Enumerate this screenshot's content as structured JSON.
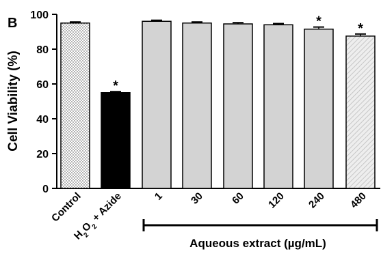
{
  "chart_data": {
    "type": "bar",
    "panel_label": "B",
    "ylabel": "Cell Viability (%)",
    "ylim": [
      0,
      100
    ],
    "yticks": [
      0,
      20,
      40,
      60,
      80,
      100
    ],
    "grid": false,
    "legend": "none",
    "categories": [
      "Control",
      "H2O2 + Azide",
      "1",
      "30",
      "60",
      "120",
      "240",
      "480"
    ],
    "values": [
      95,
      55,
      96,
      95,
      94.5,
      94,
      91.5,
      87.5
    ],
    "errors": [
      0.6,
      0.6,
      0.6,
      0.6,
      0.7,
      0.7,
      1.2,
      1.2
    ],
    "significance": [
      "",
      "*",
      "",
      "",
      "",
      "",
      "*",
      "*"
    ],
    "bar_styles": [
      "dotted-white",
      "solid-black",
      "solid-gray",
      "solid-gray",
      "solid-gray",
      "solid-gray",
      "solid-gray",
      "hatched-light"
    ],
    "group_bracket_label": "Aqueous extract (µg/mL)",
    "colors": {
      "black": "#000000",
      "gray": "#d3d3d3",
      "light": "#e6e6e6"
    }
  }
}
